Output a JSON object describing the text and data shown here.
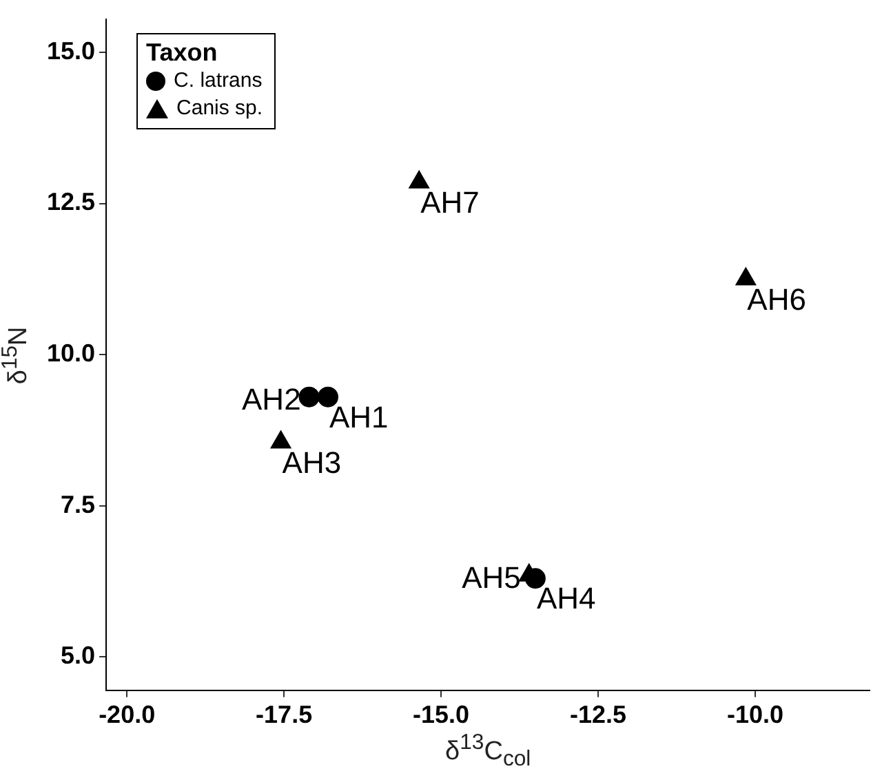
{
  "chart_data": {
    "type": "scatter",
    "xlabel": "δ$^{13}$C$_{col}$",
    "ylabel": "δ$^{15}$N",
    "legend_title": "Taxon",
    "legend": "top left",
    "xlim": [
      -20.33,
      -8.18
    ],
    "ylim": [
      4.45,
      15.55
    ],
    "xticks": [
      {
        "value": -20,
        "label": "-20.0"
      },
      {
        "value": -17.5,
        "label": "-17.5"
      },
      {
        "value": -15,
        "label": "-15.0"
      },
      {
        "value": -12.5,
        "label": "-12.5"
      },
      {
        "value": -10,
        "label": "-10.0"
      }
    ],
    "yticks": [
      {
        "value": 5,
        "label": "5.0"
      },
      {
        "value": 7.5,
        "label": "7.5"
      },
      {
        "value": 10,
        "label": "10.0"
      },
      {
        "value": 12.5,
        "label": "12.5"
      },
      {
        "value": 15,
        "label": "15.0"
      }
    ],
    "grid": false,
    "series": [
      {
        "name": "C. latrans",
        "color": "#000000",
        "marker": "circle",
        "x": [
          -16.8,
          -17.1,
          -13.5
        ],
        "values": [
          9.3,
          9.3,
          6.3
        ]
      },
      {
        "name": "Canis sp.",
        "color": "#000000",
        "marker": "triangle",
        "x": [
          -17.55,
          -13.6,
          -10.15,
          -15.35
        ],
        "values": [
          8.55,
          6.35,
          11.25,
          12.85
        ]
      }
    ],
    "annotations": [
      {
        "text": "AH1",
        "x": -16.8,
        "y": 9.3
      },
      {
        "text": "AH2",
        "x": -17.1,
        "y": 9.3
      },
      {
        "text": "AH3",
        "x": -17.55,
        "y": 8.55
      },
      {
        "text": "AH4",
        "x": -13.5,
        "y": 6.3
      },
      {
        "text": "AH5",
        "x": -13.6,
        "y": 6.35
      },
      {
        "text": "AH6",
        "x": -10.15,
        "y": 11.25
      },
      {
        "text": "AH7",
        "x": -15.35,
        "y": 12.85
      }
    ]
  }
}
